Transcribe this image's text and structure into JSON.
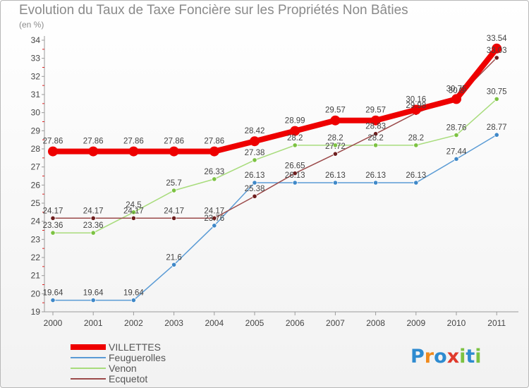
{
  "header": {
    "title": "Evolution du Taux de Taxe Foncière sur les Propriétés Non Bâties",
    "unit": "(en %)"
  },
  "logo": {
    "text": "Proxiti",
    "letters": [
      "P",
      "r",
      "o",
      "x",
      "i",
      "t",
      "i"
    ],
    "colors": [
      "#2e8bd0",
      "#f08a1c",
      "#2e8bd0",
      "#e03a2c",
      "#7cc242",
      "#2e8bd0",
      "#7cc242"
    ]
  },
  "chart_data": {
    "type": "line",
    "title": "Evolution du Taux de Taxe Foncière sur les Propriétés Non Bâties",
    "ylabel": "(en %)",
    "xlabel": "",
    "ylim": [
      19,
      34
    ],
    "yticks": [
      19,
      20,
      21,
      22,
      23,
      24,
      25,
      26,
      27,
      28,
      29,
      30,
      31,
      32,
      33,
      34
    ],
    "grid": false,
    "categories": [
      "2000",
      "2001",
      "2002",
      "2003",
      "2004",
      "2005",
      "2006",
      "2007",
      "2008",
      "2009",
      "2010",
      "2011"
    ],
    "series": [
      {
        "name": "VILLETTES",
        "color": "#ee0000",
        "bold": true,
        "values": [
          27.86,
          27.86,
          27.86,
          27.86,
          27.86,
          28.42,
          28.99,
          29.57,
          29.57,
          30.16,
          30.75,
          33.54
        ],
        "labels": [
          "27.86",
          "27.86",
          "27.86",
          "27.86",
          "27.86",
          "28.42",
          "28.99",
          "29.57",
          "29.57",
          "30.16",
          "30.75",
          "33.54"
        ]
      },
      {
        "name": "Feuguerolles",
        "color": "#5a9bd5",
        "marker": "#3f88c8",
        "values": [
          19.64,
          19.64,
          19.64,
          21.6,
          23.76,
          26.13,
          26.13,
          26.13,
          26.13,
          26.13,
          27.44,
          28.77
        ],
        "labels": [
          "19.64",
          "19.64",
          "19.64",
          "21.6",
          "23.76",
          "26.13",
          "26.13",
          "26.13",
          "26.13",
          "26.13",
          "27.44",
          "28.77"
        ]
      },
      {
        "name": "Venon",
        "color": "#a8dc7c",
        "marker": "#7cc242",
        "values": [
          23.36,
          23.36,
          24.5,
          25.7,
          26.33,
          27.38,
          28.2,
          28.2,
          28.2,
          28.2,
          28.76,
          30.75
        ],
        "labels": [
          "23.36",
          "23.36",
          "24.5",
          "25.7",
          "26.33",
          "27.38",
          "28.2",
          "28.2",
          "28.2",
          "28.2",
          "28.76",
          "30.75"
        ]
      },
      {
        "name": "Ecquetot",
        "color": "#9b4a4a",
        "marker": "#6e1e1e",
        "values": [
          24.17,
          24.17,
          24.17,
          24.17,
          24.17,
          25.38,
          26.65,
          27.72,
          28.83,
          29.98,
          30.8,
          33.03
        ],
        "labels": [
          "24.17",
          "24.17",
          "24.17",
          "24.17",
          "24.17",
          "25.38",
          "26.65",
          "27.72",
          "28.83",
          "29.98",
          "30.8",
          "33.03"
        ]
      }
    ],
    "legend": {
      "position": "bottom-left"
    }
  }
}
